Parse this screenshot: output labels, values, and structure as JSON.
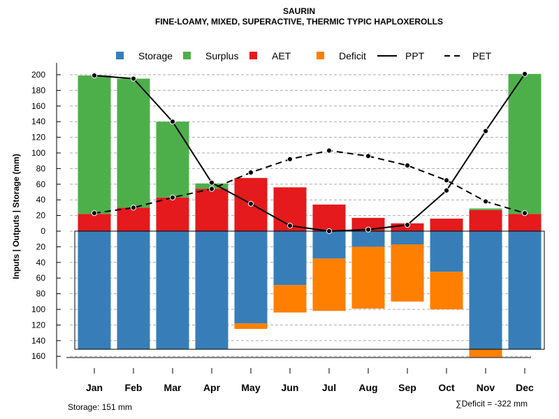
{
  "chart_data": {
    "type": "bar",
    "title": "SAURIN",
    "subtitle": "FINE-LOAMY, MIXED, SUPERACTIVE, THERMIC TYPIC HAPLOXEROLLS",
    "ylabel": "Inputs | Outputs | Storage    (mm)",
    "categories": [
      "Jan",
      "Feb",
      "Mar",
      "Apr",
      "May",
      "Jun",
      "Jul",
      "Aug",
      "Sep",
      "Oct",
      "Nov",
      "Dec"
    ],
    "ylim": [
      -160,
      200
    ],
    "yticks": [
      200,
      180,
      160,
      140,
      120,
      100,
      80,
      60,
      40,
      20,
      0,
      -20,
      -40,
      -60,
      -80,
      -100,
      -120,
      -140,
      -160
    ],
    "ytick_labels": [
      "200",
      "180",
      "160",
      "140",
      "120",
      "100",
      "80",
      "60",
      "40",
      "20",
      "0",
      "20",
      "40",
      "60",
      "80",
      "100",
      "120",
      "140",
      "160"
    ],
    "legend": [
      "Storage",
      "Surplus",
      "AET",
      "Deficit",
      "PPT",
      "PET"
    ],
    "colors": {
      "storage": "#377EB8",
      "surplus": "#4DAF4A",
      "aet": "#E41A1C",
      "deficit": "#FF7F00",
      "line": "#000000",
      "grid": "#aaaaaa"
    },
    "storage_capacity": 151,
    "series": {
      "aet": [
        22,
        30,
        43,
        54,
        68,
        56,
        34,
        17,
        10,
        16,
        27,
        22
      ],
      "surplus": [
        177,
        165,
        97,
        7,
        0,
        0,
        0,
        0,
        0,
        0,
        2,
        179
      ],
      "storage": [
        151,
        151,
        151,
        151,
        118,
        69,
        35,
        20,
        17,
        52,
        151,
        151
      ],
      "deficit": [
        0,
        0,
        0,
        0,
        7,
        35,
        67,
        79,
        73,
        48,
        10,
        0
      ],
      "ppt": [
        199,
        195,
        140,
        62,
        35,
        7,
        0,
        2,
        8,
        52,
        128,
        201
      ],
      "pet": [
        23,
        30,
        43,
        54,
        75,
        92,
        103,
        96,
        84,
        65,
        38,
        23
      ]
    },
    "notes": {
      "storage": "Storage: 151 mm",
      "deficit": "∑Deficit = -322 mm"
    }
  }
}
